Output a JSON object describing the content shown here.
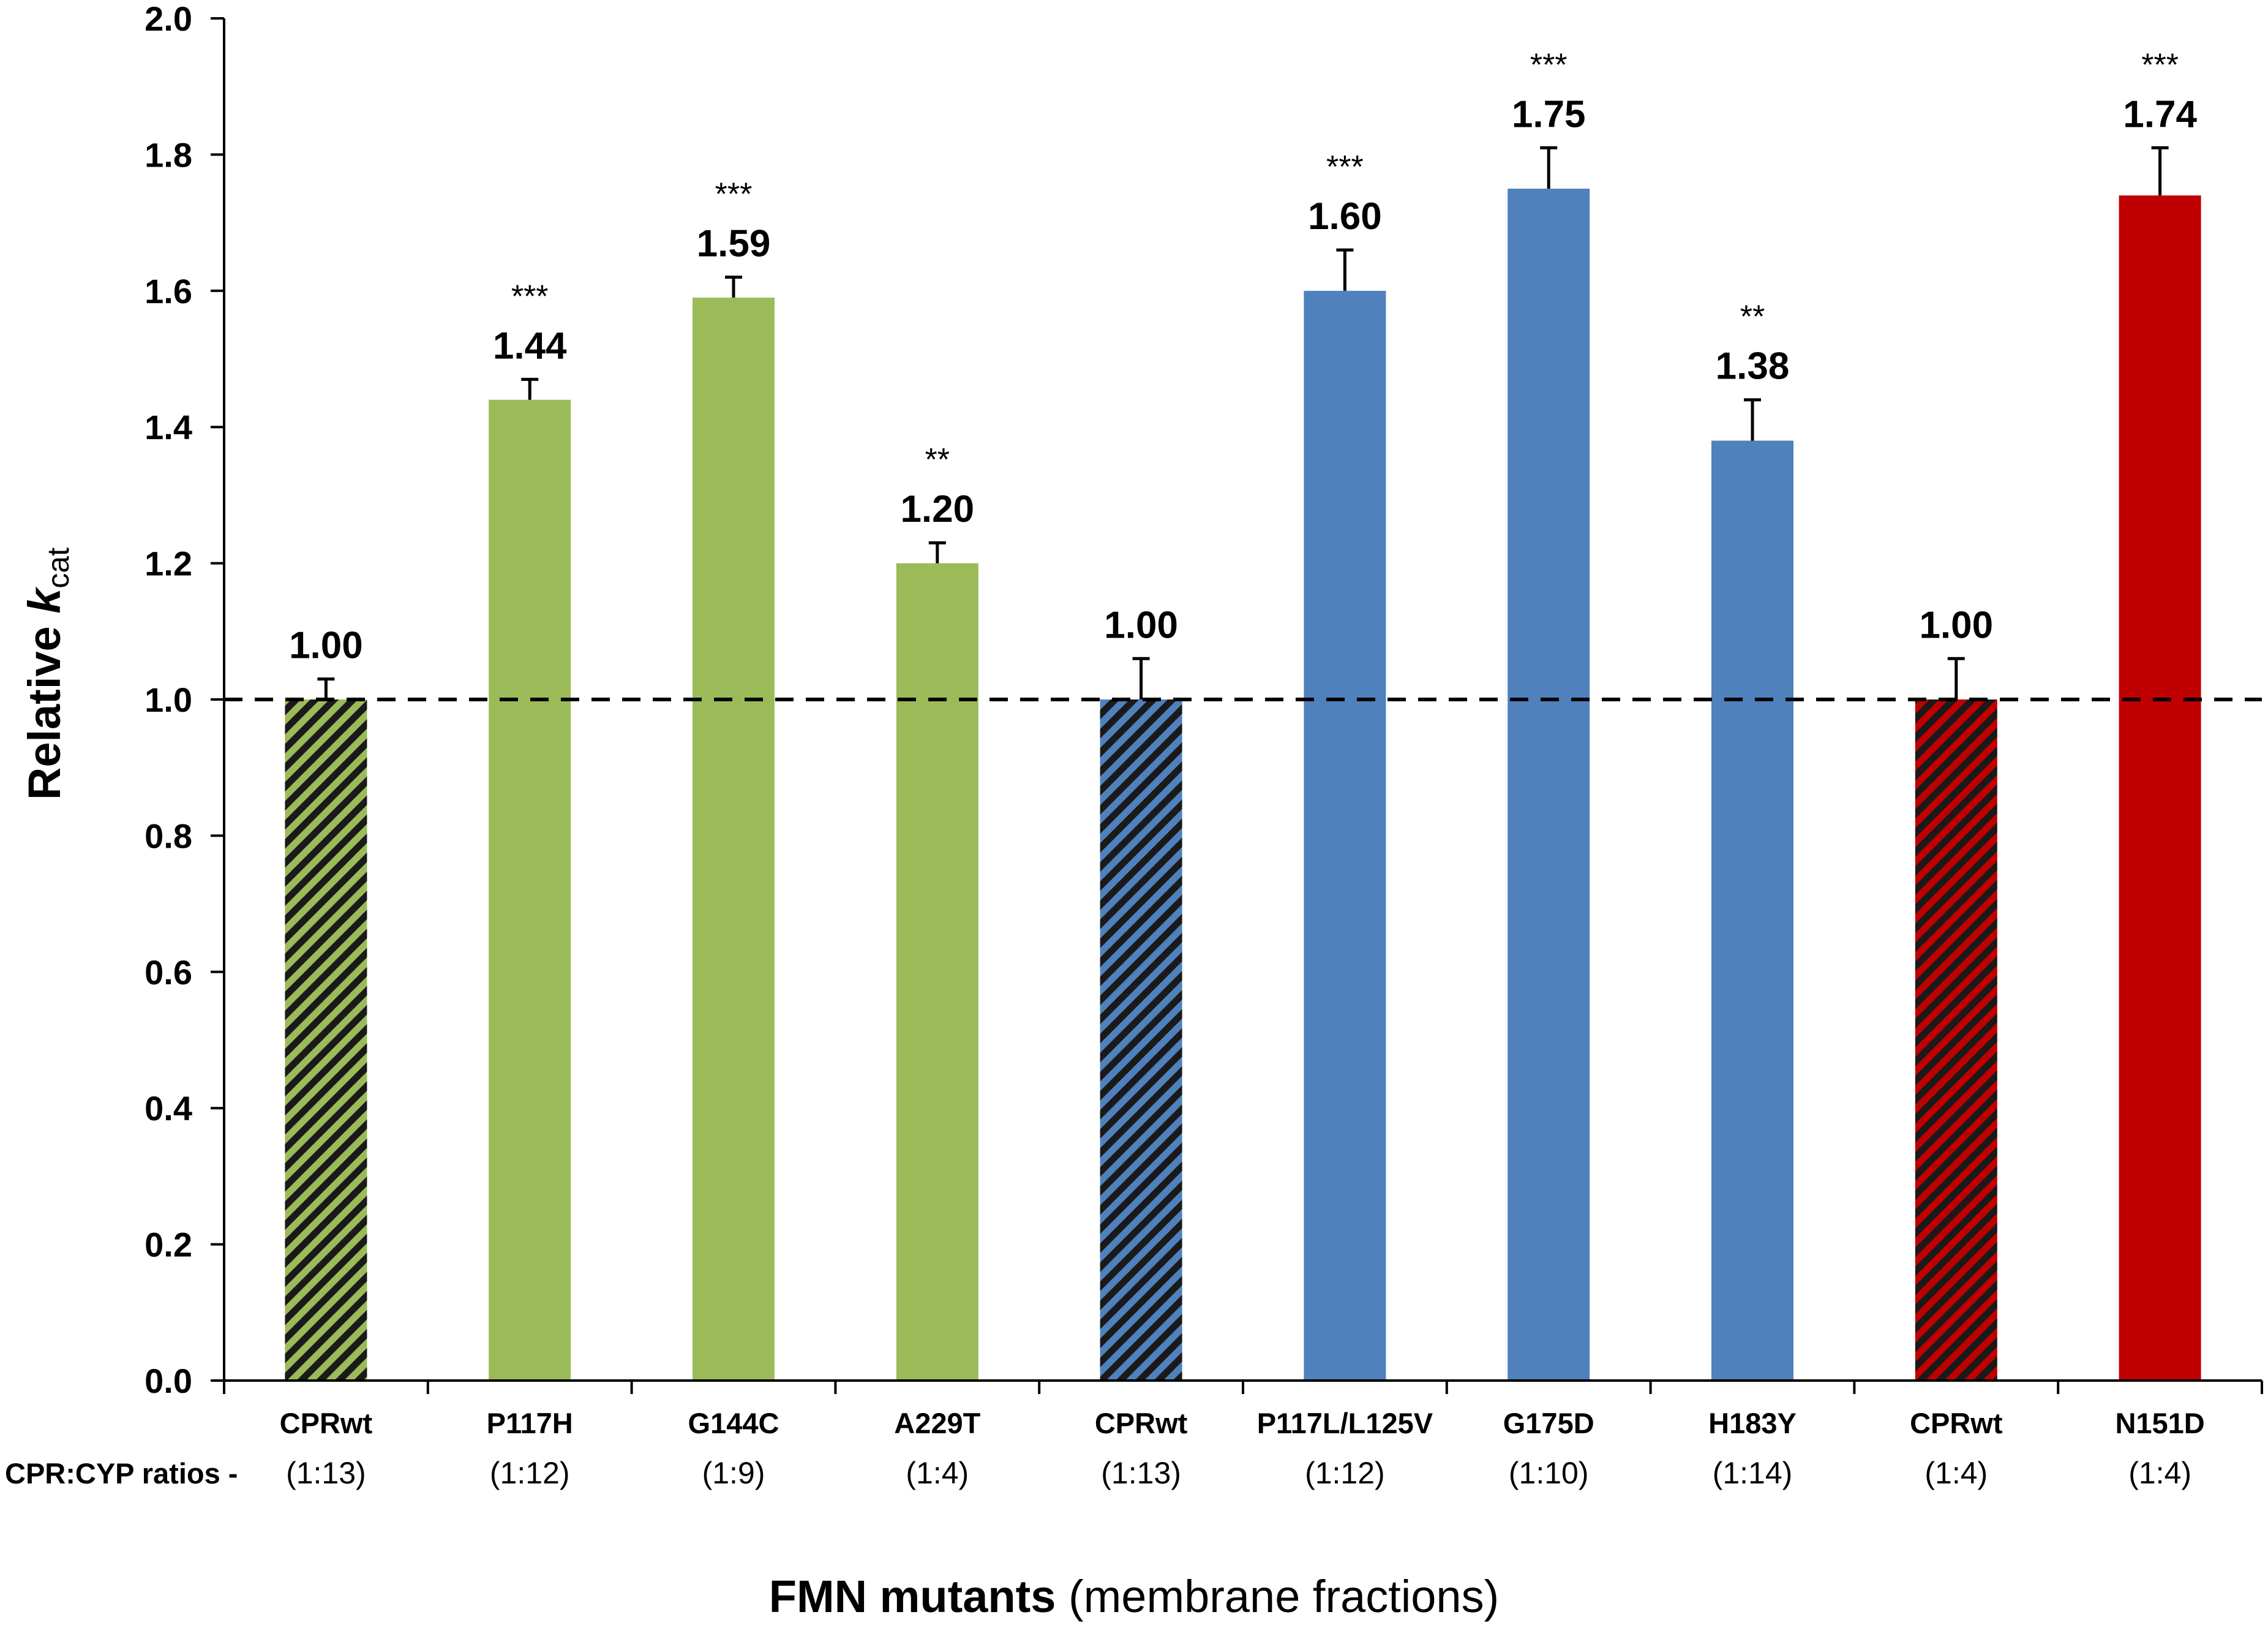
{
  "chart_data": {
    "type": "bar",
    "ylabel_prefix": "Relative ",
    "ylabel_k": "k",
    "ylabel_sub": "cat",
    "xlabel_bold": "FMN mutants",
    "xlabel_normal": " (membrane fractions)",
    "ratio_label": "CPR:CYP ratios -",
    "ylim": [
      0,
      2.0
    ],
    "yticks": [
      "0.0",
      "0.2",
      "0.4",
      "0.6",
      "0.8",
      "1.0",
      "1.2",
      "1.4",
      "1.6",
      "1.8",
      "2.0"
    ],
    "reference_line": 1.0,
    "colors": {
      "green": "#9BBB59",
      "blue": "#4F81BD",
      "red": "#C00000"
    },
    "categories": [
      "CPRwt",
      "P117H",
      "G144C",
      "A229T",
      "CPRwt",
      "P117L/L125V",
      "G175D",
      "H183Y",
      "CPRwt",
      "N151D"
    ],
    "ratios": [
      "(1:13)",
      "(1:12)",
      "(1:9)",
      "(1:4)",
      "(1:13)",
      "(1:12)",
      "(1:10)",
      "(1:14)",
      "(1:4)",
      "(1:4)"
    ],
    "values": [
      1.0,
      1.44,
      1.59,
      1.2,
      1.0,
      1.6,
      1.75,
      1.38,
      1.0,
      1.74
    ],
    "errors": [
      0.03,
      0.03,
      0.03,
      0.03,
      0.06,
      0.06,
      0.06,
      0.06,
      0.06,
      0.07
    ],
    "value_labels": [
      "1.00",
      "1.44",
      "1.59",
      "1.20",
      "1.00",
      "1.60",
      "1.75",
      "1.38",
      "1.00",
      "1.74"
    ],
    "significance": [
      "",
      "***",
      "***",
      "**",
      "",
      "***",
      "***",
      "**",
      "",
      "***"
    ],
    "bar_colors": [
      "green",
      "green",
      "green",
      "green",
      "blue",
      "blue",
      "blue",
      "blue",
      "red",
      "red"
    ],
    "hatched": [
      true,
      false,
      false,
      false,
      true,
      false,
      false,
      false,
      true,
      false
    ]
  }
}
